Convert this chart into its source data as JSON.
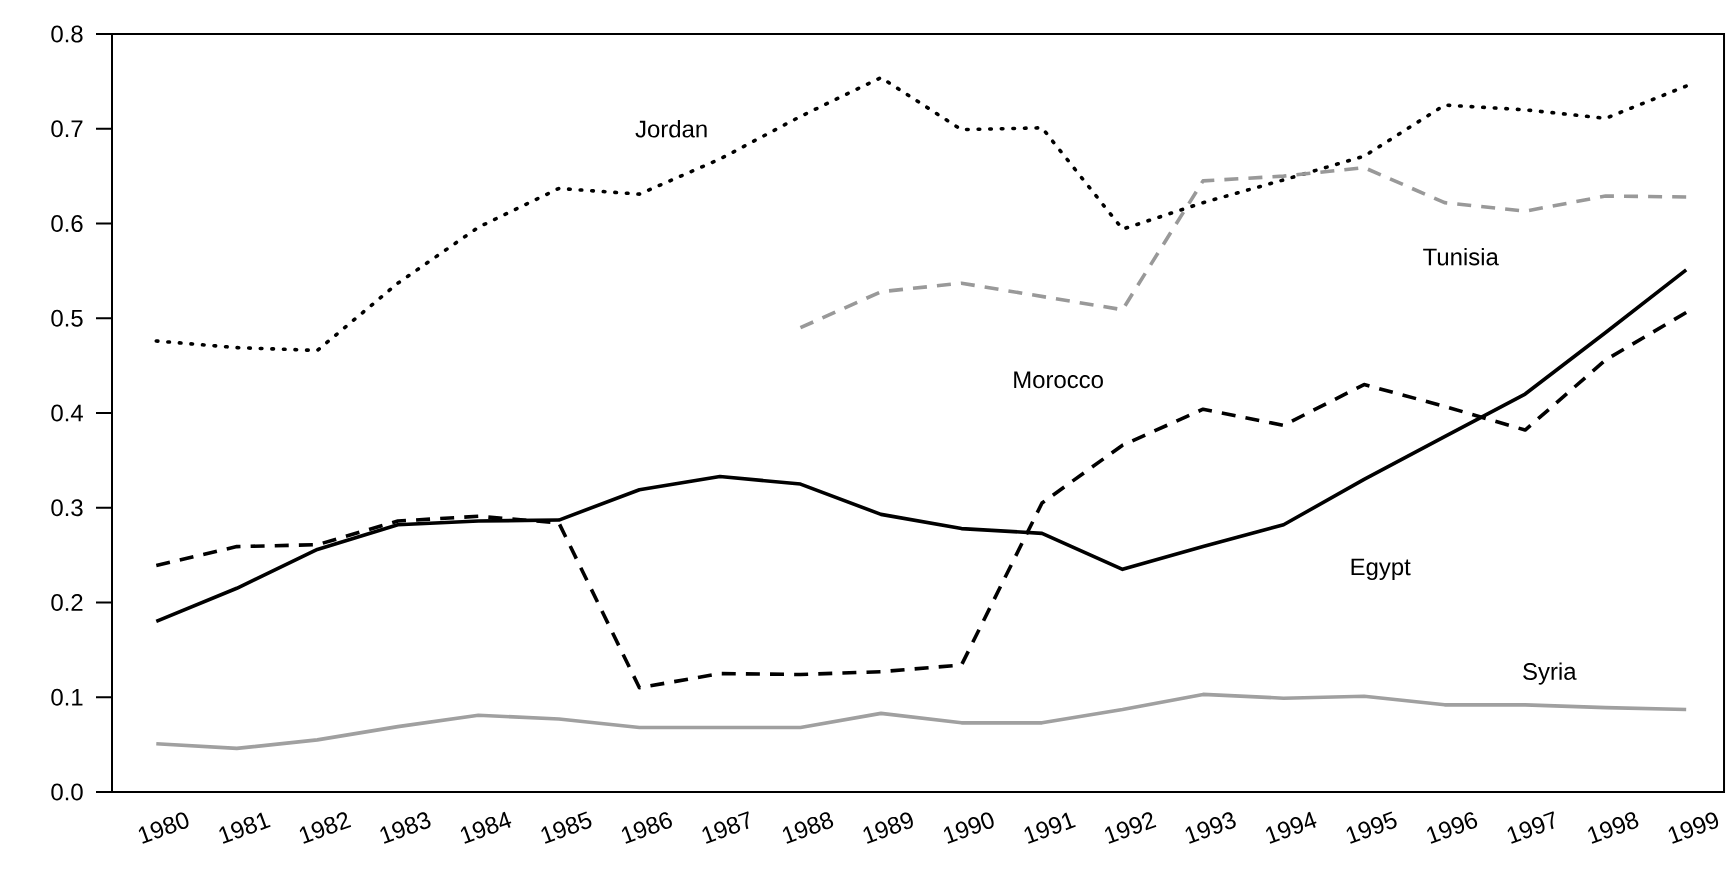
{
  "chart_data": {
    "type": "line",
    "categories": [
      "1980",
      "1981",
      "1982",
      "1983",
      "1984",
      "1985",
      "1986",
      "1987",
      "1988",
      "1989",
      "1990",
      "1991",
      "1992",
      "1993",
      "1994",
      "1995",
      "1996",
      "1997",
      "1998",
      "1999"
    ],
    "ylim": [
      0,
      0.8
    ],
    "yticks": [
      {
        "value": 0,
        "label": "0.0"
      },
      0.1,
      0.2,
      0.3,
      0.4,
      0.5,
      0.6,
      0.7,
      0.8
    ],
    "grid": false,
    "series": [
      {
        "name": "Jordan",
        "color": "#000000",
        "line_style": "dotted",
        "values": [
          0.476,
          0.469,
          0.466,
          0.537,
          0.596,
          0.637,
          0.631,
          0.668,
          0.713,
          0.754,
          0.699,
          0.701,
          0.594,
          0.622,
          0.646,
          0.671,
          0.725,
          0.72,
          0.711,
          0.745
        ]
      },
      {
        "name": "Tunisia",
        "color": "#999999",
        "line_style": "dashed",
        "values": [
          null,
          null,
          null,
          null,
          null,
          null,
          null,
          null,
          0.49,
          0.528,
          0.537,
          0.523,
          0.509,
          0.645,
          0.65,
          0.659,
          0.622,
          0.613,
          0.629,
          0.628
        ]
      },
      {
        "name": "Morocco",
        "color": "#000000",
        "line_style": "dashed",
        "values": [
          0.239,
          0.259,
          0.261,
          0.286,
          0.291,
          0.284,
          0.11,
          0.125,
          0.124,
          0.127,
          0.134,
          0.305,
          0.366,
          0.404,
          0.387,
          0.43,
          0.407,
          0.382,
          0.456,
          0.506
        ]
      },
      {
        "name": "Egypt",
        "color": "#000000",
        "line_style": "solid",
        "values": [
          0.18,
          0.215,
          0.256,
          0.282,
          0.286,
          0.287,
          0.319,
          0.333,
          0.325,
          0.293,
          0.278,
          0.273,
          0.235,
          0.259,
          0.282,
          0.33,
          0.375,
          0.42,
          0.485,
          0.551
        ]
      },
      {
        "name": "Syria",
        "color": "#a0a0a0",
        "line_style": "solid",
        "values": [
          0.051,
          0.046,
          0.055,
          0.069,
          0.081,
          0.077,
          0.068,
          0.068,
          0.068,
          0.083,
          0.073,
          0.073,
          0.087,
          0.103,
          0.099,
          0.101,
          0.092,
          0.092,
          0.089,
          0.087
        ]
      }
    ]
  }
}
